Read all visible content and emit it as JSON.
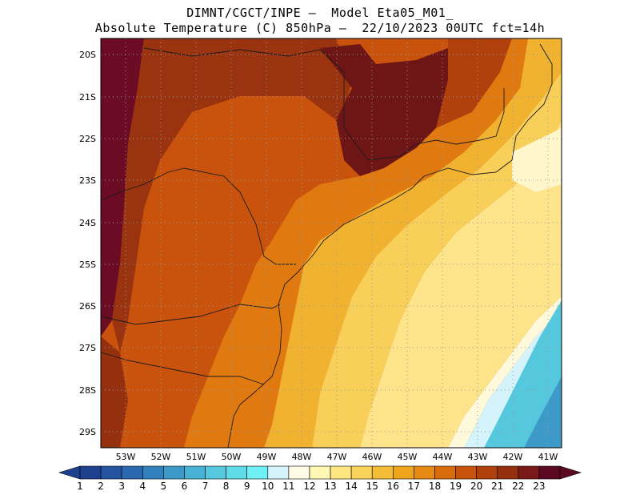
{
  "title": {
    "line1": "DIMNT/CGCT/INPE –  Model Eta05_M01_",
    "line2": "Absolute Temperature (C) 850hPa –  22/10/2023 00UTC fct=14h"
  },
  "map": {
    "lat_labels": [
      "20S",
      "21S",
      "22S",
      "23S",
      "24S",
      "25S",
      "26S",
      "27S",
      "28S",
      "29S"
    ],
    "lon_labels": [
      "53W",
      "52W",
      "51W",
      "50W",
      "49W",
      "48W",
      "47W",
      "46W",
      "45W",
      "44W",
      "43W",
      "42W",
      "41W"
    ],
    "grid": "dotted"
  },
  "colorbar": {
    "labels": [
      "1",
      "2",
      "3",
      "4",
      "5",
      "6",
      "7",
      "8",
      "9",
      "10",
      "11",
      "12",
      "13",
      "14",
      "15",
      "16",
      "17",
      "18",
      "19",
      "20",
      "21",
      "22",
      "23"
    ],
    "colors": [
      "#1f3f8f",
      "#24549f",
      "#2a69ae",
      "#3081bd",
      "#3c99c8",
      "#48b2d4",
      "#56c8de",
      "#5fdbe8",
      "#6ef0f4",
      "#d4f3fa",
      "#fffae5",
      "#fff7b4",
      "#ffe680",
      "#fad45a",
      "#f3bd38",
      "#eea51c",
      "#e68a14",
      "#d96d0e",
      "#c9530c",
      "#b0400c",
      "#95300e",
      "#7a1a18",
      "#5c0a22"
    ]
  },
  "regions": [
    {
      "name": "dark-hot-west",
      "color": "#6b0b24"
    },
    {
      "name": "hot-interior",
      "color": "#b04010"
    },
    {
      "name": "warm-interior",
      "color": "#c9530c"
    },
    {
      "name": "coastal-orange",
      "color": "#e68a14"
    },
    {
      "name": "ocean-yellow",
      "color": "#f8c95a"
    },
    {
      "name": "ocean-pale",
      "color": "#fff3b0"
    },
    {
      "name": "ocean-cool",
      "color": "#56c8de"
    }
  ]
}
